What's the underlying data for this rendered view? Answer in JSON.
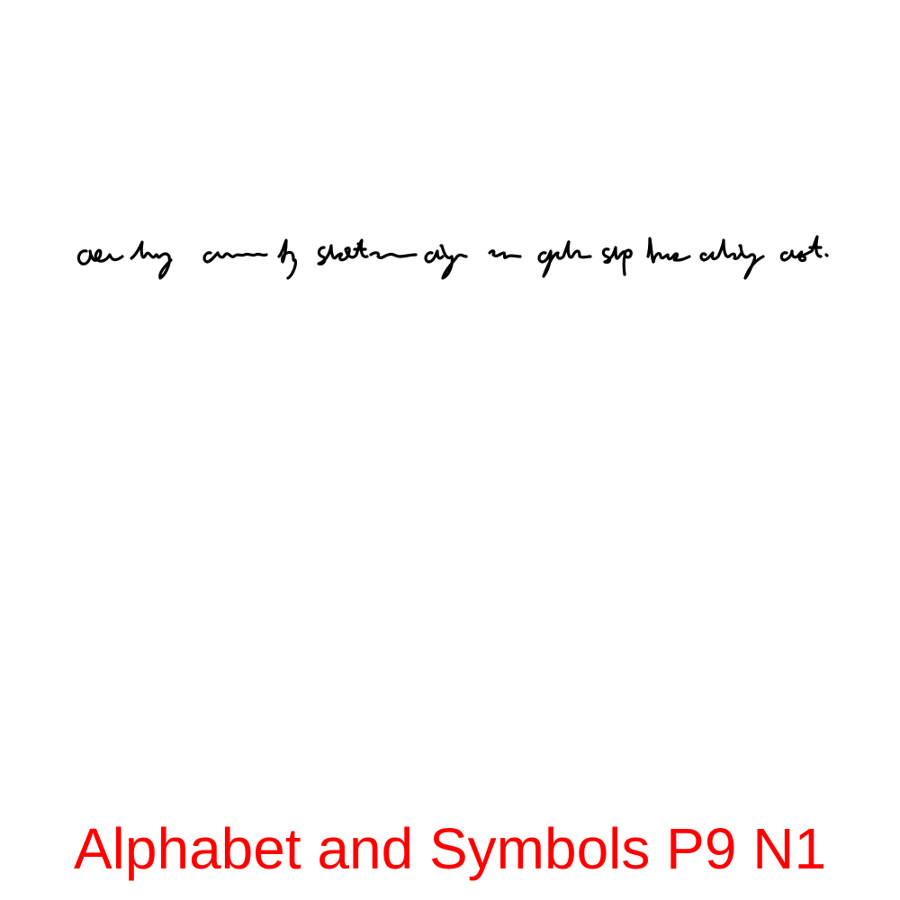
{
  "caption": {
    "text": "Alphabet and Symbols P9 N1",
    "color": "#ff0000"
  },
  "handwriting": {
    "ink_color": "#000000",
    "word_count": 14
  }
}
